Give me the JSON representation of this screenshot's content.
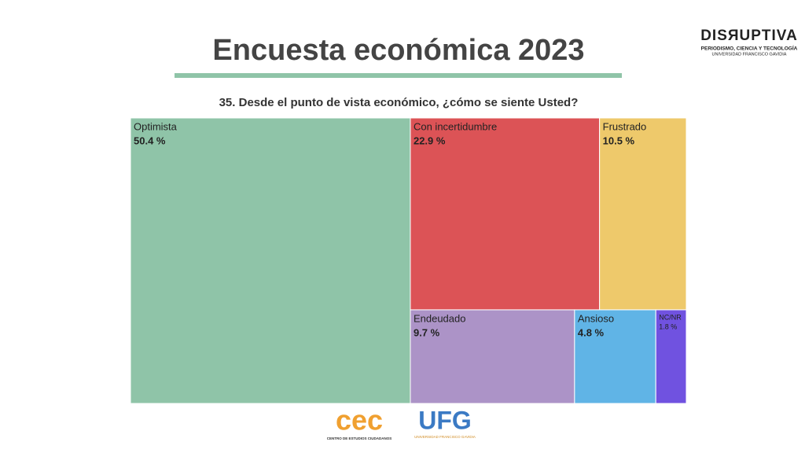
{
  "chart_data": {
    "type": "treemap",
    "title": "Encuesta económica 2023",
    "subtitle": "35. Desde el punto de vista económico, ¿cómo se siente Usted?",
    "categories": [
      "Optimista",
      "Con incertidumbre",
      "Frustrado",
      "Endeudado",
      "Ansioso",
      "NC/NR"
    ],
    "values": [
      50.4,
      22.9,
      10.5,
      9.7,
      4.8,
      1.8
    ],
    "value_labels": [
      "50.4 %",
      "22.9 %",
      "10.5 %",
      "9.7 %",
      "4.8 %",
      "1.8 %"
    ],
    "colors": [
      "#8fc4a8",
      "#dc5356",
      "#eec96b",
      "#ac93c7",
      "#60b4e6",
      "#7052e0"
    ]
  },
  "logos": {
    "brand": "DISЯUPTIVA",
    "brand_tagline": "PERIODISMO, CIENCIA Y TECNOLOGÍA",
    "brand_university": "UNIVERSIDAD FRANCISCO GAVIDIA",
    "cec": "cec",
    "cec_name": "CENTRO DE ESTUDIOS CIUDADANOS",
    "ufg": "UFG",
    "ufg_name": "UNIVERSIDAD FRANCISCO GAVIDIA"
  }
}
